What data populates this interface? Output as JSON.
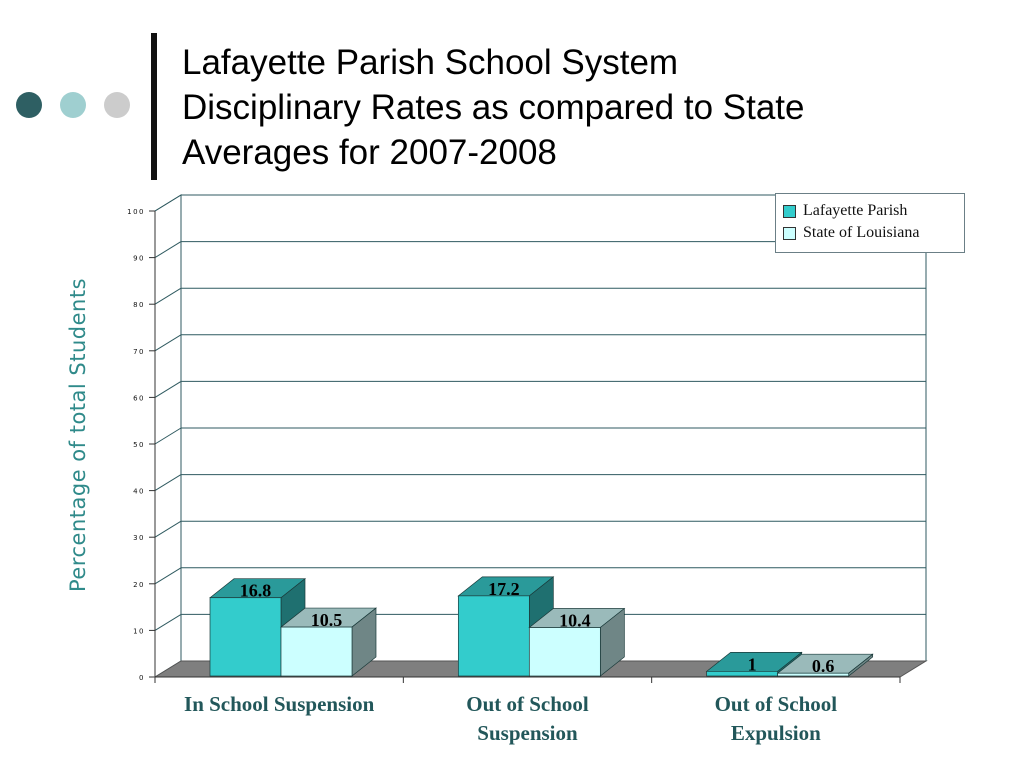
{
  "title_lines": [
    "Lafayette Parish School System",
    "Disciplinary Rates as compared to State",
    "Averages for 2007-2008"
  ],
  "colors": {
    "lafayette_front": "#33cccc",
    "lafayette_top": "#2a9a9a",
    "lafayette_side": "#1f7070",
    "state_front": "#ccffff",
    "state_top": "#9ababa",
    "state_side": "#6f8686",
    "floor": "#7f7f7f",
    "gridline": "#2f5a60",
    "axis_label": "#22575a"
  },
  "chart_data": {
    "type": "bar",
    "title": "Lafayette Parish School System Disciplinary Rates as compared to State Averages for 2007-2008",
    "xlabel": "",
    "ylabel": "Percentage of total Students",
    "ylim": [
      0,
      100
    ],
    "yticks": [
      "0",
      "10",
      "20",
      "30",
      "40",
      "50",
      "60",
      "70",
      "80",
      "90",
      "100"
    ],
    "grid": true,
    "legend_position": "top-right",
    "categories": [
      [
        "In School Suspension"
      ],
      [
        "Out of School",
        "Suspension"
      ],
      [
        "Out of School",
        "Expulsion"
      ]
    ],
    "series": [
      {
        "name": "Lafayette Parish",
        "values": [
          16.8,
          17.2,
          1
        ],
        "labels": [
          "16.8",
          "17.2",
          "1"
        ]
      },
      {
        "name": "State of Louisiana",
        "values": [
          10.5,
          10.4,
          0.6
        ],
        "labels": [
          "10.5",
          "10.4",
          "0.6"
        ]
      }
    ]
  }
}
